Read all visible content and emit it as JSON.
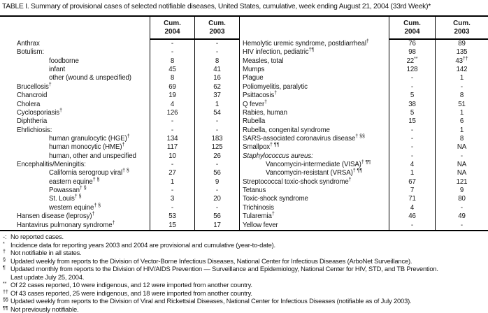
{
  "title": "TABLE I. Summary of provisional cases of selected notifiable diseases, United States, cumulative, week ending August 21, 2004 (33rd Week)*",
  "table": {
    "headers": {
      "cum": "Cum.",
      "y2004": "2004",
      "y2003": "2003"
    },
    "left": {
      "rows": [
        {
          "label": "Anthrax",
          "sup": "",
          "indent": 0,
          "italic": false,
          "v04": "-",
          "v04sup": "",
          "v03": "-",
          "v03sup": ""
        },
        {
          "label": "Botulism:",
          "sup": "",
          "indent": 0,
          "italic": false,
          "v04": "-",
          "v04sup": "",
          "v03": "-",
          "v03sup": ""
        },
        {
          "label": "foodborne",
          "sup": "",
          "indent": 1,
          "italic": false,
          "v04": "8",
          "v04sup": "",
          "v03": "8",
          "v03sup": ""
        },
        {
          "label": "infant",
          "sup": "",
          "indent": 1,
          "italic": false,
          "v04": "45",
          "v04sup": "",
          "v03": "41",
          "v03sup": ""
        },
        {
          "label": "other (wound & unspecified)",
          "sup": "",
          "indent": 1,
          "italic": false,
          "v04": "8",
          "v04sup": "",
          "v03": "16",
          "v03sup": ""
        },
        {
          "label": "Brucellosis",
          "sup": "†",
          "indent": 0,
          "italic": false,
          "v04": "69",
          "v04sup": "",
          "v03": "62",
          "v03sup": ""
        },
        {
          "label": "Chancroid",
          "sup": "",
          "indent": 0,
          "italic": false,
          "v04": "19",
          "v04sup": "",
          "v03": "37",
          "v03sup": ""
        },
        {
          "label": "Cholera",
          "sup": "",
          "indent": 0,
          "italic": false,
          "v04": "4",
          "v04sup": "",
          "v03": "1",
          "v03sup": ""
        },
        {
          "label": "Cyclosporiasis",
          "sup": "†",
          "indent": 0,
          "italic": false,
          "v04": "126",
          "v04sup": "",
          "v03": "54",
          "v03sup": ""
        },
        {
          "label": "Diphtheria",
          "sup": "",
          "indent": 0,
          "italic": false,
          "v04": "-",
          "v04sup": "",
          "v03": "-",
          "v03sup": ""
        },
        {
          "label": "Ehrlichiosis:",
          "sup": "",
          "indent": 0,
          "italic": false,
          "v04": "-",
          "v04sup": "",
          "v03": "-",
          "v03sup": ""
        },
        {
          "label": "human granulocytic (HGE)",
          "sup": "†",
          "indent": 1,
          "italic": false,
          "v04": "134",
          "v04sup": "",
          "v03": "183",
          "v03sup": ""
        },
        {
          "label": "human monocytic (HME)",
          "sup": "†",
          "indent": 1,
          "italic": false,
          "v04": "117",
          "v04sup": "",
          "v03": "125",
          "v03sup": ""
        },
        {
          "label": "human, other and unspecified",
          "sup": "",
          "indent": 1,
          "italic": false,
          "v04": "10",
          "v04sup": "",
          "v03": "26",
          "v03sup": ""
        },
        {
          "label": "Encephalitis/Meningitis:",
          "sup": "",
          "indent": 0,
          "italic": false,
          "v04": "-",
          "v04sup": "",
          "v03": "-",
          "v03sup": ""
        },
        {
          "label": "California serogroup viral",
          "sup": "† §",
          "indent": 1,
          "italic": false,
          "v04": "27",
          "v04sup": "",
          "v03": "56",
          "v03sup": ""
        },
        {
          "label": "eastern equine",
          "sup": "† §",
          "indent": 1,
          "italic": false,
          "v04": "1",
          "v04sup": "",
          "v03": "9",
          "v03sup": ""
        },
        {
          "label": "Powassan",
          "sup": "† §",
          "indent": 1,
          "italic": false,
          "v04": "-",
          "v04sup": "",
          "v03": "-",
          "v03sup": ""
        },
        {
          "label": "St. Louis",
          "sup": "† §",
          "indent": 1,
          "italic": false,
          "v04": "3",
          "v04sup": "",
          "v03": "20",
          "v03sup": ""
        },
        {
          "label": "western equine",
          "sup": "† §",
          "indent": 1,
          "italic": false,
          "v04": "-",
          "v04sup": "",
          "v03": "-",
          "v03sup": ""
        },
        {
          "label": "Hansen disease (leprosy)",
          "sup": "†",
          "indent": 0,
          "italic": false,
          "v04": "53",
          "v04sup": "",
          "v03": "56",
          "v03sup": ""
        },
        {
          "label": "Hantavirus pulmonary syndrome",
          "sup": "†",
          "indent": 0,
          "italic": false,
          "v04": "15",
          "v04sup": "",
          "v03": "17",
          "v03sup": ""
        }
      ]
    },
    "right": {
      "rows": [
        {
          "label": "Hemolytic uremic syndrome, postdiarrheal",
          "sup": "†",
          "indent": 0,
          "italic": false,
          "v04": "76",
          "v04sup": "",
          "v03": "89",
          "v03sup": ""
        },
        {
          "label": "HIV infection, pediatric",
          "sup": "†¶",
          "indent": 0,
          "italic": false,
          "v04": "98",
          "v04sup": "",
          "v03": "135",
          "v03sup": ""
        },
        {
          "label": "Measles, total",
          "sup": "",
          "indent": 0,
          "italic": false,
          "v04": "22",
          "v04sup": "**",
          "v03": "43",
          "v03sup": "††"
        },
        {
          "label": "Mumps",
          "sup": "",
          "indent": 0,
          "italic": false,
          "v04": "128",
          "v04sup": "",
          "v03": "142",
          "v03sup": ""
        },
        {
          "label": "Plague",
          "sup": "",
          "indent": 0,
          "italic": false,
          "v04": "-",
          "v04sup": "",
          "v03": "1",
          "v03sup": ""
        },
        {
          "label": "Poliomyelitis, paralytic",
          "sup": "",
          "indent": 0,
          "italic": false,
          "v04": "-",
          "v04sup": "",
          "v03": "-",
          "v03sup": ""
        },
        {
          "label": "Psittacosis",
          "sup": "†",
          "indent": 0,
          "italic": false,
          "v04": "5",
          "v04sup": "",
          "v03": "8",
          "v03sup": ""
        },
        {
          "label": "Q fever",
          "sup": "†",
          "indent": 0,
          "italic": false,
          "v04": "38",
          "v04sup": "",
          "v03": "51",
          "v03sup": ""
        },
        {
          "label": "Rabies, human",
          "sup": "",
          "indent": 0,
          "italic": false,
          "v04": "5",
          "v04sup": "",
          "v03": "1",
          "v03sup": ""
        },
        {
          "label": "Rubella",
          "sup": "",
          "indent": 0,
          "italic": false,
          "v04": "15",
          "v04sup": "",
          "v03": "6",
          "v03sup": ""
        },
        {
          "label": "Rubella, congenital syndrome",
          "sup": "",
          "indent": 0,
          "italic": false,
          "v04": "-",
          "v04sup": "",
          "v03": "1",
          "v03sup": ""
        },
        {
          "label": "SARS-associated coronavirus disease",
          "sup": "† §§",
          "indent": 0,
          "italic": false,
          "v04": "-",
          "v04sup": "",
          "v03": "8",
          "v03sup": ""
        },
        {
          "label": "Smallpox",
          "sup": "† ¶¶",
          "indent": 0,
          "italic": false,
          "v04": "-",
          "v04sup": "",
          "v03": "NA",
          "v03sup": ""
        },
        {
          "label": "Staphylococcus aureus:",
          "sup": "",
          "indent": 0,
          "italic": true,
          "v04": "-",
          "v04sup": "",
          "v03": "-",
          "v03sup": ""
        },
        {
          "label": "Vancomycin-intermediate (VISA)",
          "sup": "† ¶¶",
          "indent": 1,
          "italic": false,
          "v04": "4",
          "v04sup": "",
          "v03": "NA",
          "v03sup": ""
        },
        {
          "label": "Vancomycin-resistant (VRSA)",
          "sup": "† ¶¶",
          "indent": 1,
          "italic": false,
          "v04": "1",
          "v04sup": "",
          "v03": "NA",
          "v03sup": ""
        },
        {
          "label": "Streptococcal toxic-shock syndrome",
          "sup": "†",
          "indent": 0,
          "italic": false,
          "v04": "67",
          "v04sup": "",
          "v03": "121",
          "v03sup": ""
        },
        {
          "label": "Tetanus",
          "sup": "",
          "indent": 0,
          "italic": false,
          "v04": "7",
          "v04sup": "",
          "v03": "9",
          "v03sup": ""
        },
        {
          "label": "Toxic-shock syndrome",
          "sup": "",
          "indent": 0,
          "italic": false,
          "v04": "71",
          "v04sup": "",
          "v03": "80",
          "v03sup": ""
        },
        {
          "label": "Trichinosis",
          "sup": "",
          "indent": 0,
          "italic": false,
          "v04": "4",
          "v04sup": "",
          "v03": "-",
          "v03sup": ""
        },
        {
          "label": "Tularemia",
          "sup": "†",
          "indent": 0,
          "italic": false,
          "v04": "46",
          "v04sup": "",
          "v03": "49",
          "v03sup": ""
        },
        {
          "label": "Yellow fever",
          "sup": "",
          "indent": 0,
          "italic": false,
          "v04": "-",
          "v04sup": "",
          "v03": "-",
          "v03sup": ""
        }
      ]
    }
  },
  "footnotes": [
    {
      "marker": "-:",
      "sup": false,
      "text": "No reported cases.",
      "text2": ""
    },
    {
      "marker": "*",
      "sup": true,
      "text": "Incidence data for reporting years 2003 and 2004 are provisional and cumulative (year-to-date).",
      "text2": ""
    },
    {
      "marker": "†",
      "sup": true,
      "text": "Not notifiable in all states.",
      "text2": ""
    },
    {
      "marker": "§",
      "sup": true,
      "text": "Updated weekly from reports to the Division of Vector-Borne Infectious Diseases, National Center for Infectious Diseases (ArboNet Surveillance).",
      "text2": ""
    },
    {
      "marker": "¶",
      "sup": true,
      "text": "Updated monthly from reports to the Division of HIV/AIDS Prevention — Surveillance and Epidemiology, National Center for HIV, STD, and TB Prevention.",
      "text2": "Last update July 25, 2004."
    },
    {
      "marker": "**",
      "sup": true,
      "text": "Of 22 cases reported, 10 were indigenous, and 12 were imported from another country.",
      "text2": ""
    },
    {
      "marker": "††",
      "sup": true,
      "text": "Of 43 cases reported, 25 were indigenous, and 18 were imported from another country.",
      "text2": ""
    },
    {
      "marker": "§§",
      "sup": true,
      "text": "Updated weekly from reports to the Division of Viral and Rickettsial Diseases, National Center for Infectious Diseases (notifiable as of July 2003).",
      "text2": ""
    },
    {
      "marker": "¶¶",
      "sup": true,
      "text": "Not previously notifiable.",
      "text2": ""
    }
  ]
}
